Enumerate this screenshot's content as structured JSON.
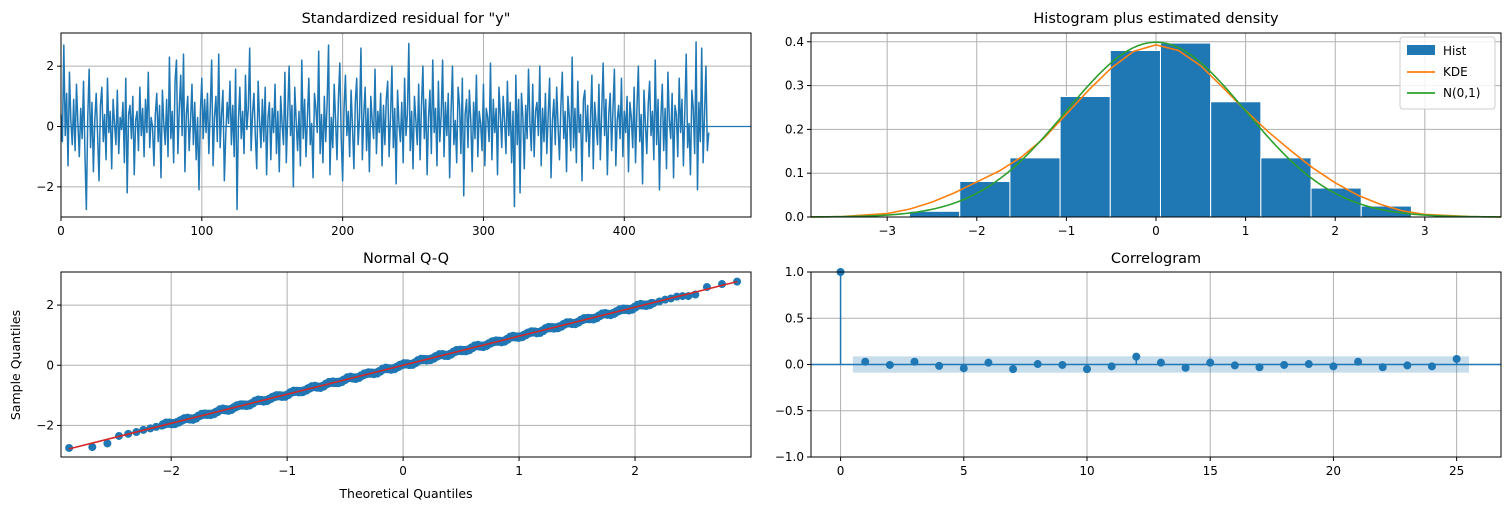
{
  "chart_data": [
    {
      "type": "line",
      "title": "Standardized residual for \"y\"",
      "xlim": [
        0,
        490
      ],
      "ylim": [
        -3.0,
        3.1
      ],
      "xticks": [
        0,
        100,
        200,
        300,
        400
      ],
      "yticks": [
        -2,
        0,
        2
      ],
      "grid": true,
      "series": [
        {
          "values": [
            0.4,
            -0.5,
            2.7,
            -0.3,
            1.1,
            -1.3,
            1.8,
            0.2,
            -0.6,
            0.9,
            -0.8,
            1.4,
            0.1,
            -1.0,
            0.6,
            -0.4,
            1.5,
            -0.9,
            -2.75,
            0.3,
            1.9,
            -0.7,
            0.8,
            -1.5,
            0.2,
            1.1,
            -0.3,
            -1.8,
            0.7,
            1.3,
            -0.5,
            0.4,
            -1.1,
            1.6,
            -0.2,
            0.5,
            -1.4,
            0.9,
            0.1,
            -0.6,
            1.2,
            -0.9,
            0.3,
            -0.1,
            0.8,
            -1.2,
            1.6,
            -2.2,
            0.4,
            0.7,
            -0.4,
            1.0,
            -1.6,
            0.2,
            0.5,
            -0.8,
            1.3,
            -0.3,
            0.6,
            -1.0,
            0.9,
            -0.2,
            1.8,
            -0.7,
            0.3,
            0.0,
            -1.3,
            0.4,
            1.1,
            -0.5,
            0.7,
            -1.7,
            1.2,
            0.1,
            -0.6,
            0.9,
            -1.0,
            2.3,
            -0.4,
            0.5,
            -1.2,
            1.5,
            2.2,
            -0.9,
            0.6,
            1.7,
            -0.3,
            2.4,
            -1.5,
            0.4,
            1.0,
            -0.8,
            0.2,
            1.4,
            -0.6,
            0.8,
            -1.1,
            0.3,
            -2.1,
            0.5,
            1.6,
            -0.4,
            0.9,
            -0.2,
            1.1,
            -0.9,
            0.6,
            2.2,
            -1.3,
            0.3,
            1.0,
            -0.5,
            2.4,
            -0.7,
            0.4,
            1.2,
            -1.8,
            -0.3,
            0.8,
            0.1,
            1.5,
            -0.6,
            0.7,
            -1.0,
            1.9,
            -2.75,
            0.2,
            1.3,
            -0.4,
            0.5,
            -0.9,
            1.7,
            -0.1,
            0.6,
            2.6,
            -0.8,
            0.4,
            1.1,
            -0.3,
            -1.4,
            1.5,
            0.2,
            -0.7,
            0.9,
            -0.5,
            1.3,
            -1.6,
            0.3,
            0.8,
            -1.1,
            0.6,
            -0.2,
            1.4,
            -0.9,
            0.5,
            -1.5,
            1.0,
            0.1,
            -0.6,
            1.8,
            -1.2,
            0.4,
            2.0,
            -0.3,
            0.7,
            -2.0,
            1.3,
            0.2,
            -0.8,
            0.5,
            -1.3,
            2.2,
            -0.4,
            0.9,
            -1.0,
            0.3,
            1.6,
            -0.6,
            0.1,
            -1.7,
            1.1,
            0.6,
            -0.2,
            2.5,
            -0.9,
            0.4,
            -1.2,
            1.0,
            -0.5,
            0.8,
            2.7,
            -1.6,
            0.3,
            -0.7,
            1.4,
            0.2,
            -1.1,
            0.9,
            2.1,
            -0.4,
            -1.8,
            0.6,
            1.7,
            -0.3,
            0.5,
            -1.0,
            1.2,
            0.0,
            -1.4,
            0.8,
            1.6,
            -0.6,
            0.3,
            2.6,
            -1.1,
            0.4,
            1.3,
            -0.8,
            0.6,
            -1.5,
            1.0,
            0.2,
            -0.4,
            1.9,
            -0.9,
            0.5,
            -0.2,
            1.1,
            -1.3,
            0.7,
            -0.6,
            0.9,
            1.5,
            -1.0,
            0.3,
            2.0,
            -0.7,
            0.6,
            -1.9,
            1.2,
            0.1,
            -0.5,
            0.8,
            -1.2,
            1.6,
            -0.3,
            0.4,
            2.75,
            -0.8,
            0.5,
            -1.4,
            1.0,
            0.2,
            -0.6,
            1.4,
            -1.1,
            0.7,
            2.0,
            -0.4,
            0.9,
            -1.6,
            0.3,
            1.2,
            -0.9,
            2.2,
            -0.2,
            0.6,
            -1.3,
            1.5,
            -0.5,
            0.4,
            2.2,
            -1.0,
            0.8,
            -0.3,
            1.1,
            -1.7,
            0.5,
            2.0,
            -0.6,
            0.2,
            -1.2,
            1.3,
            0.7,
            -0.9,
            1.6,
            -2.3,
            0.4,
            0.9,
            -0.7,
            1.2,
            0.2,
            -1.5,
            0.8,
            -0.4,
            1.7,
            -1.0,
            0.5,
            0.1,
            -0.8,
            1.4,
            -1.3,
            0.6,
            0.3,
            -0.5,
            2.1,
            -1.1,
            0.9,
            -0.2,
            0.6,
            -1.6,
            1.3,
            0.4,
            -0.7,
            1.0,
            0.2,
            -0.9,
            1.5,
            -0.3,
            0.8,
            -1.2,
            0.5,
            -2.65,
            1.7,
            -0.6,
            0.9,
            -2.2,
            1.1,
            0.3,
            -1.4,
            0.7,
            -0.4,
            1.9,
            0.1,
            -0.8,
            1.4,
            -1.0,
            0.5,
            0.8,
            -0.3,
            2.0,
            -1.3,
            0.6,
            -0.5,
            1.1,
            -0.9,
            0.4,
            1.6,
            -1.7,
            0.2,
            0.9,
            -0.6,
            1.3,
            0.0,
            -1.1,
            0.7,
            1.8,
            -0.4,
            0.5,
            -1.5,
            1.0,
            0.3,
            -0.8,
            2.3,
            -0.7,
            0.6,
            -1.2,
            1.5,
            -0.2,
            0.4,
            -1.8,
            0.9,
            1.2,
            -0.5,
            0.7,
            -1.0,
            0.2,
            1.7,
            -1.4,
            0.8,
            0.1,
            -0.6,
            1.4,
            -1.1,
            0.5,
            2.1,
            -0.3,
            0.9,
            -1.6,
            0.4,
            1.1,
            -0.8,
            0.6,
            1.9,
            -1.3,
            0.2,
            0.7,
            -0.4,
            1.6,
            -1.0,
            0.5,
            -0.2,
            1.0,
            -1.5,
            0.8,
            0.3,
            -0.7,
            1.3,
            -1.2,
            0.6,
            2.0,
            -0.5,
            0.4,
            -1.9,
            1.2,
            0.1,
            -0.9,
            0.7,
            1.5,
            -0.3,
            0.5,
            -1.1,
            2.2,
            -0.6,
            0.9,
            -2.1,
            0.3,
            1.4,
            -0.8,
            0.6,
            -1.4,
            1.8,
            0.2,
            -0.4,
            1.1,
            -1.7,
            0.7,
            0.4,
            -1.0,
            1.6,
            -0.2,
            0.9,
            -1.3,
            0.5,
            2.4,
            -0.7,
            0.1,
            -1.6,
            1.2,
            0.6,
            -0.9,
            2.8,
            -2.1,
            0.8,
            -0.5,
            2.6,
            -1.2,
            0.4,
            2.0,
            -0.8,
            -0.2
          ]
        }
      ]
    },
    {
      "type": "bar",
      "title": "Histogram plus estimated density",
      "xlim": [
        -3.85,
        3.85
      ],
      "ylim": [
        0,
        0.42
      ],
      "xticks": [
        -3,
        -2,
        -1,
        0,
        1,
        2,
        3
      ],
      "yticks": [
        0.0,
        0.1,
        0.2,
        0.3,
        0.4
      ],
      "grid": true,
      "legend_position": "top-right",
      "bin_edges": [
        -2.75,
        -2.19,
        -1.63,
        -1.07,
        -0.51,
        0.05,
        0.61,
        1.17,
        1.73,
        2.29,
        2.85
      ],
      "values": [
        0.013,
        0.081,
        0.135,
        0.275,
        0.38,
        0.397,
        0.263,
        0.135,
        0.066,
        0.025
      ],
      "legend": [
        "Hist",
        "KDE",
        "N(0,1)"
      ],
      "colors": {
        "hist": "#1f77b4",
        "kde": "#ff7f0e",
        "normal": "#2ca02c"
      },
      "kde": {
        "x": [
          -3.85,
          -3.5,
          -3.0,
          -2.75,
          -2.5,
          -2.25,
          -2.0,
          -1.75,
          -1.5,
          -1.25,
          -1.0,
          -0.75,
          -0.5,
          -0.25,
          0.0,
          0.25,
          0.5,
          0.75,
          1.0,
          1.25,
          1.5,
          1.75,
          2.0,
          2.25,
          2.5,
          2.75,
          3.0,
          3.5,
          3.85
        ],
        "y": [
          0.0,
          0.001,
          0.008,
          0.018,
          0.034,
          0.055,
          0.08,
          0.105,
          0.137,
          0.18,
          0.235,
          0.29,
          0.34,
          0.378,
          0.393,
          0.38,
          0.345,
          0.295,
          0.243,
          0.195,
          0.152,
          0.112,
          0.078,
          0.05,
          0.029,
          0.014,
          0.006,
          0.001,
          0.0
        ]
      }
    },
    {
      "type": "scatter",
      "title": "Normal Q-Q",
      "xlabel": "Theoretical Quantiles",
      "ylabel": "Sample Quantiles",
      "xlim": [
        -2.95,
        3.0
      ],
      "ylim": [
        -3.05,
        3.1
      ],
      "xticks": [
        -2,
        -1,
        0,
        1,
        2
      ],
      "yticks": [
        -2,
        0,
        2
      ],
      "grid": true,
      "colors": {
        "points": "#1f77b4",
        "line": "#d62728"
      },
      "line": {
        "x": [
          -2.88,
          2.88
        ],
        "y": [
          -2.78,
          2.78
        ]
      },
      "outlier_points": {
        "x": [
          -2.88,
          -2.68,
          -2.55,
          -2.45,
          -2.37,
          -2.3,
          -2.24,
          -2.18,
          -2.13,
          2.21,
          2.26,
          2.31,
          2.36,
          2.41,
          2.46,
          2.52,
          2.62,
          2.75,
          2.88
        ],
        "y": [
          -2.75,
          -2.72,
          -2.6,
          -2.35,
          -2.28,
          -2.22,
          -2.15,
          -2.1,
          -2.05,
          2.12,
          2.18,
          2.22,
          2.28,
          2.3,
          2.3,
          2.35,
          2.6,
          2.7,
          2.78
        ]
      },
      "body": {
        "n": 460,
        "xmin": -2.08,
        "xmax": 2.16,
        "slope": 0.965,
        "intercept": 0.0
      }
    },
    {
      "type": "bar",
      "title": "Correlogram",
      "xlim": [
        -1.2,
        26.8
      ],
      "ylim": [
        -1.0,
        1.0
      ],
      "xticks": [
        0,
        5,
        10,
        15,
        20,
        25
      ],
      "yticks": [
        -1.0,
        -0.5,
        0.0,
        0.5,
        1.0
      ],
      "grid": true,
      "lags": [
        0,
        1,
        2,
        3,
        4,
        5,
        6,
        7,
        8,
        9,
        10,
        11,
        12,
        13,
        14,
        15,
        16,
        17,
        18,
        19,
        20,
        21,
        22,
        23,
        24,
        25
      ],
      "values": [
        1.0,
        0.03,
        -0.005,
        0.03,
        -0.015,
        -0.04,
        0.02,
        -0.05,
        0.005,
        -0.005,
        -0.05,
        -0.02,
        0.085,
        0.02,
        -0.035,
        0.02,
        -0.01,
        -0.03,
        -0.005,
        0.005,
        -0.02,
        0.03,
        -0.03,
        -0.01,
        -0.02,
        0.06
      ],
      "confidence_band": [
        -0.088,
        0.088
      ],
      "colors": {
        "stems": "#1f77b4",
        "band": "#1f77b4"
      }
    }
  ]
}
